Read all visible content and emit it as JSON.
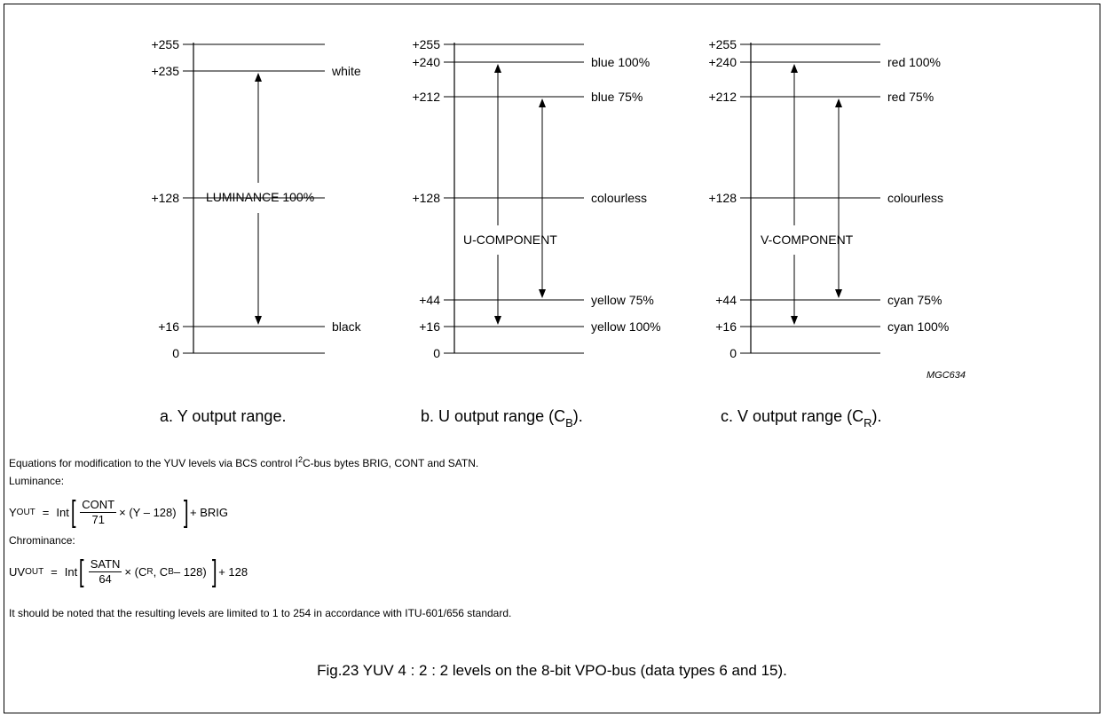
{
  "panels": [
    {
      "component_label": "LUMINANCE 100%",
      "caption_main": "a.  Y output range.",
      "caption_sub": "",
      "caption_close": "",
      "levels": [
        {
          "value": 255,
          "text": "+255",
          "label": ""
        },
        {
          "value": 235,
          "text": "+235",
          "label": "white"
        },
        {
          "value": 128,
          "text": "+128",
          "label": ""
        },
        {
          "value": 16,
          "text": "+16",
          "label": "black"
        },
        {
          "value": 0,
          "text": "0",
          "label": ""
        }
      ],
      "arrows": [
        {
          "from": 235,
          "to": 16
        }
      ]
    },
    {
      "component_label": "U-COMPONENT",
      "caption_main": "b.  U output range (C",
      "caption_sub": "B",
      "caption_close": ").",
      "levels": [
        {
          "value": 255,
          "text": "+255",
          "label": ""
        },
        {
          "value": 240,
          "text": "+240",
          "label": "blue 100%"
        },
        {
          "value": 212,
          "text": "+212",
          "label": "blue 75%"
        },
        {
          "value": 128,
          "text": "+128",
          "label": "colourless"
        },
        {
          "value": 44,
          "text": "+44",
          "label": "yellow 75%"
        },
        {
          "value": 16,
          "text": "+16",
          "label": "yellow 100%"
        },
        {
          "value": 0,
          "text": "0",
          "label": ""
        }
      ],
      "arrows": [
        {
          "from": 240,
          "to": 16
        },
        {
          "from": 212,
          "to": 44
        }
      ]
    },
    {
      "component_label": "V-COMPONENT",
      "caption_main": "c.  V output range (C",
      "caption_sub": "R",
      "caption_close": ").",
      "levels": [
        {
          "value": 255,
          "text": "+255",
          "label": ""
        },
        {
          "value": 240,
          "text": "+240",
          "label": "red 100%"
        },
        {
          "value": 212,
          "text": "+212",
          "label": "red 75%"
        },
        {
          "value": 128,
          "text": "+128",
          "label": "colourless"
        },
        {
          "value": 44,
          "text": "+44",
          "label": "cyan 75%"
        },
        {
          "value": 16,
          "text": "+16",
          "label": "cyan 100%"
        },
        {
          "value": 0,
          "text": "0",
          "label": ""
        }
      ],
      "arrows": [
        {
          "from": 240,
          "to": 16
        },
        {
          "from": 212,
          "to": 44
        }
      ]
    }
  ],
  "drawing_code": "MGC634",
  "notes": {
    "intro_before": "Equations for modification to the YUV levels via BCS control I",
    "intro_sup": "2",
    "intro_after": "C-bus bytes BRIG, CONT and SATN.",
    "luminance_heading": "Luminance:",
    "chrominance_heading": "Chrominance:",
    "limit_note": "It should be noted that the resulting levels are limited to 1 to 254 in accordance with ITU-601/656 standard."
  },
  "equations": {
    "y": {
      "lhs": "Y",
      "lhs_sub": "OUT",
      "eq": "=",
      "func": "Int",
      "num": "CONT",
      "den": "71",
      "tail": "× (Y – 128)",
      "after": "+ BRIG"
    },
    "uv": {
      "lhs": "UV",
      "lhs_sub": "OUT",
      "eq": "=",
      "func": "Int",
      "num": "SATN",
      "den": "64",
      "tail_a": "× (C",
      "tail_sub1": "R",
      "tail_b": ", C",
      "tail_sub2": "B",
      "tail_c": " – 128)",
      "after": "+ 128"
    }
  },
  "figure_caption": "Fig.23  YUV 4 : 2 : 2 levels on the 8-bit VPO-bus (data types 6 and 15)."
}
